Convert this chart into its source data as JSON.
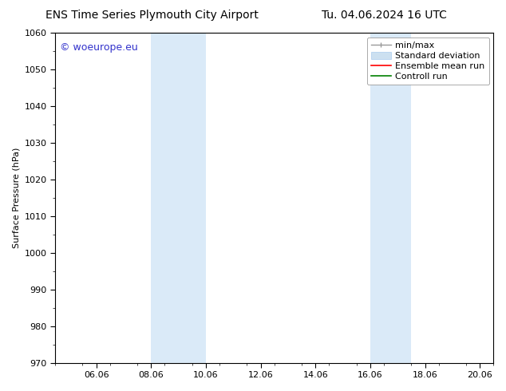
{
  "title_left": "ENS Time Series Plymouth City Airport",
  "title_right": "Tu. 04.06.2024 16 UTC",
  "ylabel": "Surface Pressure (hPa)",
  "ylim": [
    970,
    1060
  ],
  "yticks": [
    970,
    980,
    990,
    1000,
    1010,
    1020,
    1030,
    1040,
    1050,
    1060
  ],
  "xtick_labels": [
    "06.06",
    "08.06",
    "10.06",
    "12.06",
    "14.06",
    "16.06",
    "18.06",
    "20.06"
  ],
  "xtick_days": [
    1.5,
    3.5,
    5.5,
    7.5,
    9.5,
    11.5,
    13.5,
    15.5
  ],
  "xlim_days": [
    0,
    16
  ],
  "shaded_bands": [
    {
      "start_day": 3.5,
      "end_day": 5.5
    },
    {
      "start_day": 11.5,
      "end_day": 13.0
    }
  ],
  "background_color": "#ffffff",
  "band_color": "#daeaf8",
  "watermark_text": "© woeurope.eu",
  "watermark_color": "#3333cc",
  "font_family": "DejaVu Sans",
  "font_size": 8,
  "title_font_size": 10,
  "legend_font_size": 8
}
